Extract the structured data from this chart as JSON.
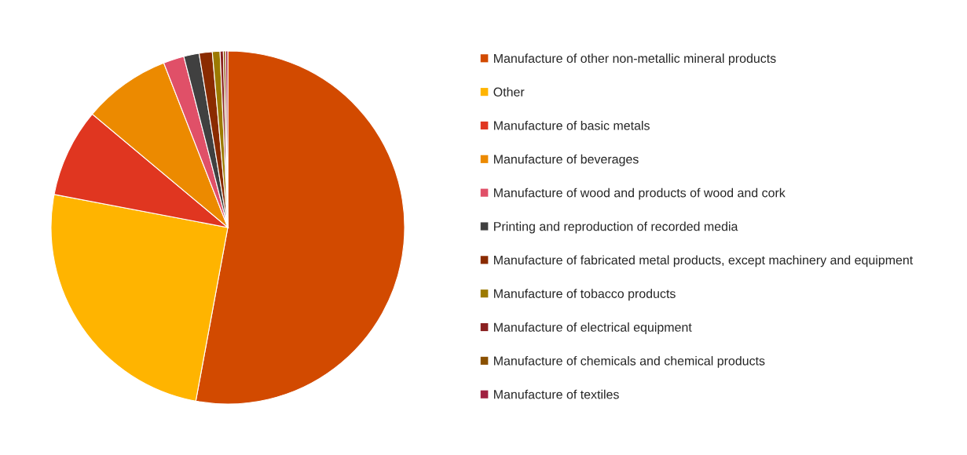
{
  "chart_data": {
    "type": "pie",
    "categories": [
      "Manufacture of other non-metallic mineral products",
      "Other",
      "Manufacture of basic metals",
      "Manufacture of beverages",
      "Manufacture of wood and products of wood and cork",
      "Printing and reproduction of recorded media",
      "Manufacture of fabricated metal products, except machinery and equipment",
      "Manufacture of tobacco products",
      "Manufacture of electrical equipment",
      "Manufacture of chemicals and chemical products",
      "Manufacture of textiles"
    ],
    "values": [
      52.9,
      25.1,
      8.1,
      8.0,
      1.9,
      1.4,
      1.2,
      0.7,
      0.3,
      0.2,
      0.2
    ],
    "colors": [
      "#d24a00",
      "#ffb400",
      "#e03620",
      "#ec8a00",
      "#e05068",
      "#404040",
      "#8a2b00",
      "#9c7a00",
      "#8a2020",
      "#8a5000",
      "#a02040"
    ],
    "legend": "right"
  }
}
